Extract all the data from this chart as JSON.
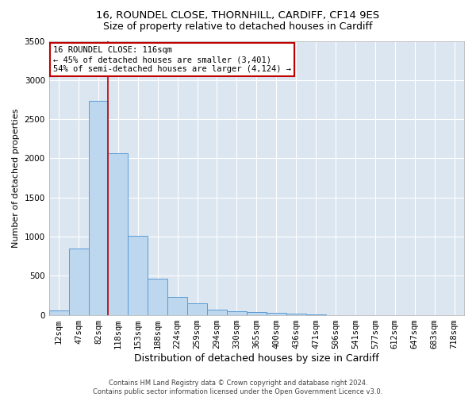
{
  "title1": "16, ROUNDEL CLOSE, THORNHILL, CARDIFF, CF14 9ES",
  "title2": "Size of property relative to detached houses in Cardiff",
  "xlabel": "Distribution of detached houses by size in Cardiff",
  "ylabel": "Number of detached properties",
  "footer1": "Contains HM Land Registry data © Crown copyright and database right 2024.",
  "footer2": "Contains public sector information licensed under the Open Government Licence v3.0.",
  "categories": [
    "12sqm",
    "47sqm",
    "82sqm",
    "118sqm",
    "153sqm",
    "188sqm",
    "224sqm",
    "259sqm",
    "294sqm",
    "330sqm",
    "365sqm",
    "400sqm",
    "436sqm",
    "471sqm",
    "506sqm",
    "541sqm",
    "577sqm",
    "612sqm",
    "647sqm",
    "683sqm",
    "718sqm"
  ],
  "values": [
    60,
    850,
    2730,
    2060,
    1010,
    460,
    230,
    145,
    65,
    50,
    35,
    30,
    20,
    10,
    0,
    0,
    0,
    0,
    0,
    0,
    0
  ],
  "bar_color": "#bdd7ee",
  "bar_edge_color": "#5b9bd5",
  "vline_index": 3,
  "vline_color": "#c00000",
  "ylim": [
    0,
    3500
  ],
  "yticks": [
    0,
    500,
    1000,
    1500,
    2000,
    2500,
    3000,
    3500
  ],
  "annotation_text": "16 ROUNDEL CLOSE: 116sqm\n← 45% of detached houses are smaller (3,401)\n54% of semi-detached houses are larger (4,124) →",
  "annotation_box_color": "#ffffff",
  "annotation_box_edgecolor": "#c00000",
  "plot_bg_color": "#dce6f1",
  "title1_fontsize": 9.5,
  "title2_fontsize": 9,
  "xlabel_fontsize": 9,
  "ylabel_fontsize": 8,
  "tick_fontsize": 7.5,
  "annotation_fontsize": 7.5,
  "footer_fontsize": 6
}
